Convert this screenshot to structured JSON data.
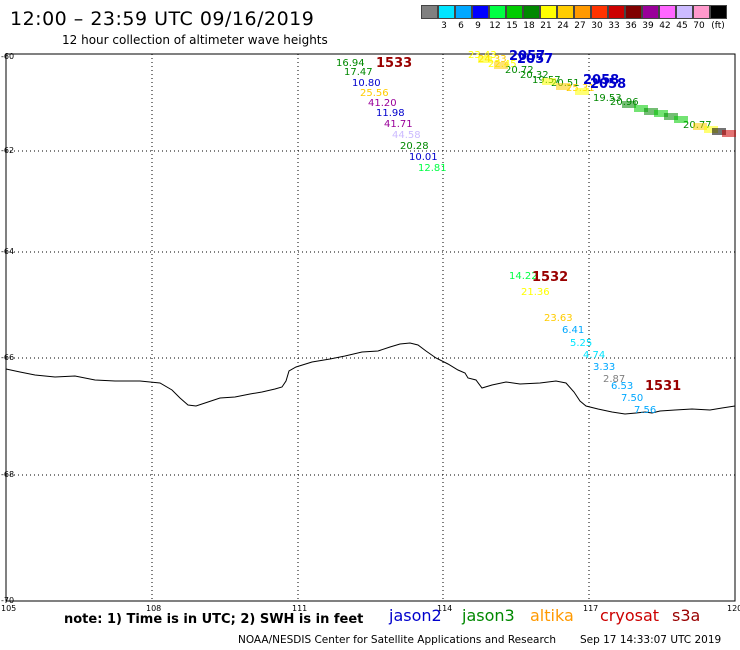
{
  "title": "12:00 – 23:59 UTC 09/16/2019",
  "subtitle": "12 hour collection of altimeter wave heights",
  "colorbar": {
    "unit": "(ft)",
    "colors": [
      "#808080",
      "#00e5ff",
      "#00a8ff",
      "#0000ff",
      "#00ff44",
      "#00cc00",
      "#008800",
      "#ffff00",
      "#ffcc00",
      "#ff9900",
      "#ff3300",
      "#cc0000",
      "#800000",
      "#990099",
      "#ff66ff",
      "#ccbbff",
      "#ff99cc",
      "#000000"
    ],
    "labels": [
      "3",
      "6",
      "9",
      "12",
      "15",
      "18",
      "21",
      "24",
      "27",
      "30",
      "33",
      "36",
      "39",
      "42",
      "45",
      "70"
    ]
  },
  "axes": {
    "x_ticks": [
      "105",
      "108",
      "111",
      "114",
      "117",
      "120"
    ],
    "y_ticks": [
      "-60",
      "-62",
      "-64",
      "-66",
      "-68",
      "-70"
    ]
  },
  "passes": [
    {
      "id": "1533",
      "color": "#990000"
    },
    {
      "id": "1532",
      "color": "#990000"
    },
    {
      "id": "1531",
      "color": "#990000"
    },
    {
      "id": "2057",
      "color": "#0000cc"
    },
    {
      "id": "2058",
      "color": "#0000cc"
    }
  ],
  "observations": [
    {
      "v": "16.94",
      "color": "#008800"
    },
    {
      "v": "17.47",
      "color": "#008800"
    },
    {
      "v": "10.80",
      "color": "#0000cc"
    },
    {
      "v": "25.56",
      "color": "#ffcc00"
    },
    {
      "v": "41.20",
      "color": "#990099"
    },
    {
      "v": "11.98",
      "color": "#0000cc"
    },
    {
      "v": "41.71",
      "color": "#990099"
    },
    {
      "v": "44.58",
      "color": "#ccbbff"
    },
    {
      "v": "20.28",
      "color": "#008800"
    },
    {
      "v": "10.01",
      "color": "#0000cc"
    },
    {
      "v": "12.81",
      "color": "#00ff44"
    },
    {
      "v": "23.43",
      "color": "#ffff00"
    },
    {
      "v": "24.33",
      "color": "#ffcc00"
    },
    {
      "v": "22.45",
      "color": "#ffff00"
    },
    {
      "v": "20.72",
      "color": "#008800"
    },
    {
      "v": "20.32",
      "color": "#008800"
    },
    {
      "v": "19.57",
      "color": "#008800"
    },
    {
      "v": "20.51",
      "color": "#008800"
    },
    {
      "v": "25.31",
      "color": "#ffcc00"
    },
    {
      "v": "19.53",
      "color": "#008800"
    },
    {
      "v": "20.96",
      "color": "#008800"
    },
    {
      "v": "20.77",
      "color": "#008800"
    },
    {
      "v": "14.22",
      "color": "#00ff44"
    },
    {
      "v": "21.36",
      "color": "#ffff00"
    },
    {
      "v": "23.63",
      "color": "#ffcc00"
    },
    {
      "v": "6.41",
      "color": "#00a8ff"
    },
    {
      "v": "5.25",
      "color": "#00e5ff"
    },
    {
      "v": "4.74",
      "color": "#00e5ff"
    },
    {
      "v": "3.33",
      "color": "#00a8ff"
    },
    {
      "v": "2.87",
      "color": "#808080"
    },
    {
      "v": "6.53",
      "color": "#00a8ff"
    },
    {
      "v": "7.50",
      "color": "#00a8ff"
    },
    {
      "v": "7.56",
      "color": "#00a8ff"
    }
  ],
  "note": "note:  1) Time is in UTC;  2) SWH is in feet",
  "satellites": [
    {
      "name": "jason2",
      "color": "#0000cc"
    },
    {
      "name": "jason3",
      "color": "#008800"
    },
    {
      "name": "altika",
      "color": "#ff9900"
    },
    {
      "name": "cryosat",
      "color": "#cc0000"
    },
    {
      "name": "s3a",
      "color": "#990000"
    }
  ],
  "footer": "NOAA/NESDIS Center for Satellite Applications and Research",
  "timestamp": "Sep 17 14:33:07 UTC 2019"
}
